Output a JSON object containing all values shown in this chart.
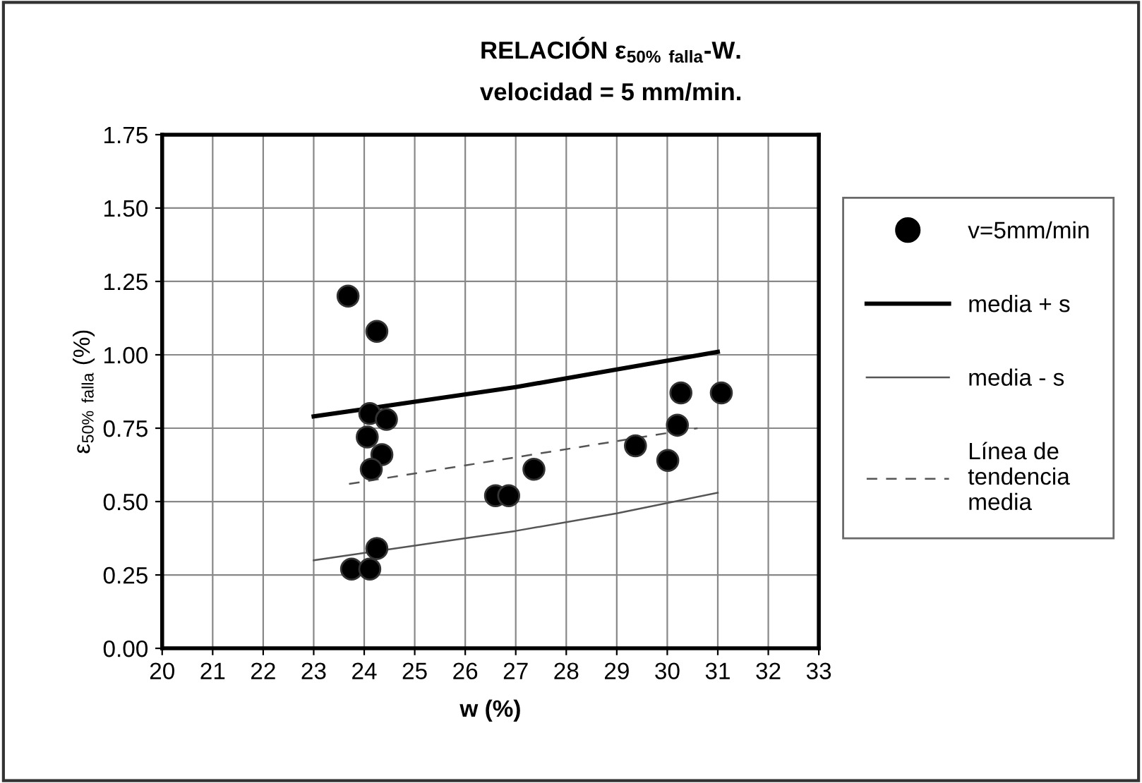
{
  "chart_data": {
    "type": "scatter",
    "title": "RELACIÓN ε$_{50%}$ $_{falla}$-W.",
    "subtitle": "velocidad = 5 mm/min.",
    "xlabel": "w (%)",
    "ylabel": "ε$_{50%}$ $_{falla}$ (%)",
    "xlim": [
      20,
      33
    ],
    "xticks": [
      20,
      21,
      22,
      23,
      24,
      25,
      26,
      27,
      28,
      29,
      30,
      31,
      32,
      33
    ],
    "ylim": [
      0,
      1.75
    ],
    "yticks": [
      {
        "value": 0,
        "label": "0.00"
      },
      {
        "value": 0.25,
        "label": "0.25"
      },
      {
        "value": 0.5,
        "label": "0.50"
      },
      {
        "value": 0.75,
        "label": "0.75"
      },
      {
        "value": 1.0,
        "label": "1.00"
      },
      {
        "value": 1.25,
        "label": "1.25"
      },
      {
        "value": 1.5,
        "label": "1.50"
      },
      {
        "value": 1.75,
        "label": "1.75"
      }
    ],
    "grid": true,
    "legend": "right",
    "series": [
      {
        "name": "v=5mm/min",
        "marker": "circle",
        "color": "#000000",
        "x": [
          23.68,
          24.25,
          24.11,
          24.44,
          24.06,
          24.35,
          24.14,
          29.37,
          30.27,
          31.07,
          30.2,
          30.01,
          27.36,
          26.6,
          26.86,
          24.25,
          23.75,
          24.11
        ],
        "values": [
          1.2,
          1.08,
          0.8,
          0.78,
          0.72,
          0.66,
          0.61,
          0.69,
          0.87,
          0.87,
          0.76,
          0.64,
          0.61,
          0.52,
          0.52,
          0.34,
          0.27,
          0.27
        ]
      },
      {
        "name": "media + s",
        "type": "line",
        "line_style": "solid",
        "color": "#000000",
        "x": [
          23,
          25,
          27,
          29,
          31
        ],
        "values": [
          0.79,
          0.84,
          0.89,
          0.95,
          1.01
        ]
      },
      {
        "name": "media - s",
        "type": "line",
        "line_style": "solid",
        "color": "#555555",
        "x": [
          23,
          25,
          27,
          29,
          31
        ],
        "values": [
          0.3,
          0.35,
          0.4,
          0.46,
          0.53
        ]
      },
      {
        "name": "Línea de\ntendencia\nmedia",
        "type": "line",
        "line_style": "dashed",
        "color": "#555555",
        "x": [
          23.7,
          30.6
        ],
        "values": [
          0.56,
          0.75
        ]
      }
    ]
  }
}
